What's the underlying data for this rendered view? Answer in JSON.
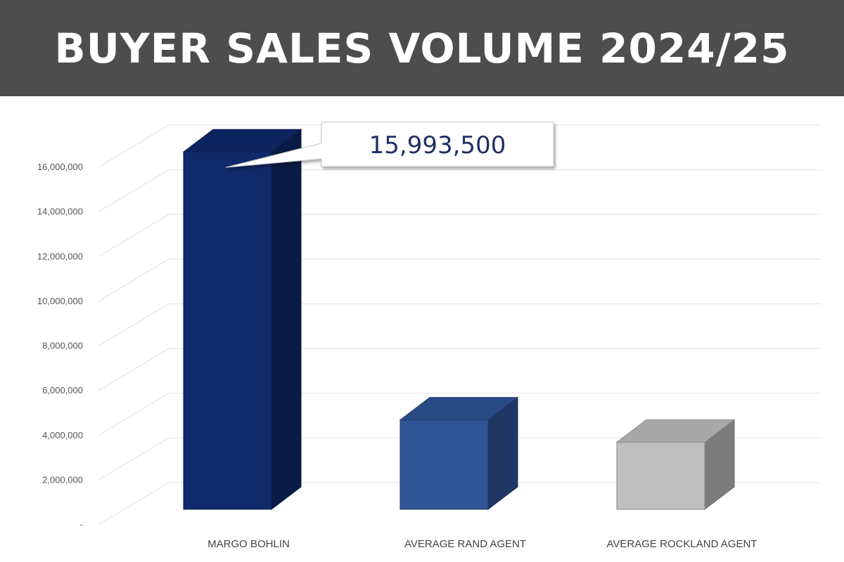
{
  "header": {
    "title": "BUYER SALES VOLUME 2024/25"
  },
  "chart_data": {
    "type": "bar",
    "title": "BUYER SALES VOLUME 2024/25",
    "categories": [
      "MARGO BOHLIN",
      "AVERAGE RAND AGENT",
      "AVERAGE ROCKLAND AGENT"
    ],
    "values": [
      15993500,
      4000000,
      3000000
    ],
    "ylim": [
      0,
      16000000
    ],
    "yticks": [
      "-",
      "2,000,000",
      "4,000,000",
      "6,000,000",
      "8,000,000",
      "10,000,000",
      "12,000,000",
      "14,000,000",
      "16,000,000"
    ],
    "grid": true,
    "three_d": true,
    "colors": [
      "#0f2a6b",
      "#2f5597",
      "#bfbfbf"
    ],
    "annotation": {
      "category": "MARGO BOHLIN",
      "text": "15,993,500"
    }
  }
}
